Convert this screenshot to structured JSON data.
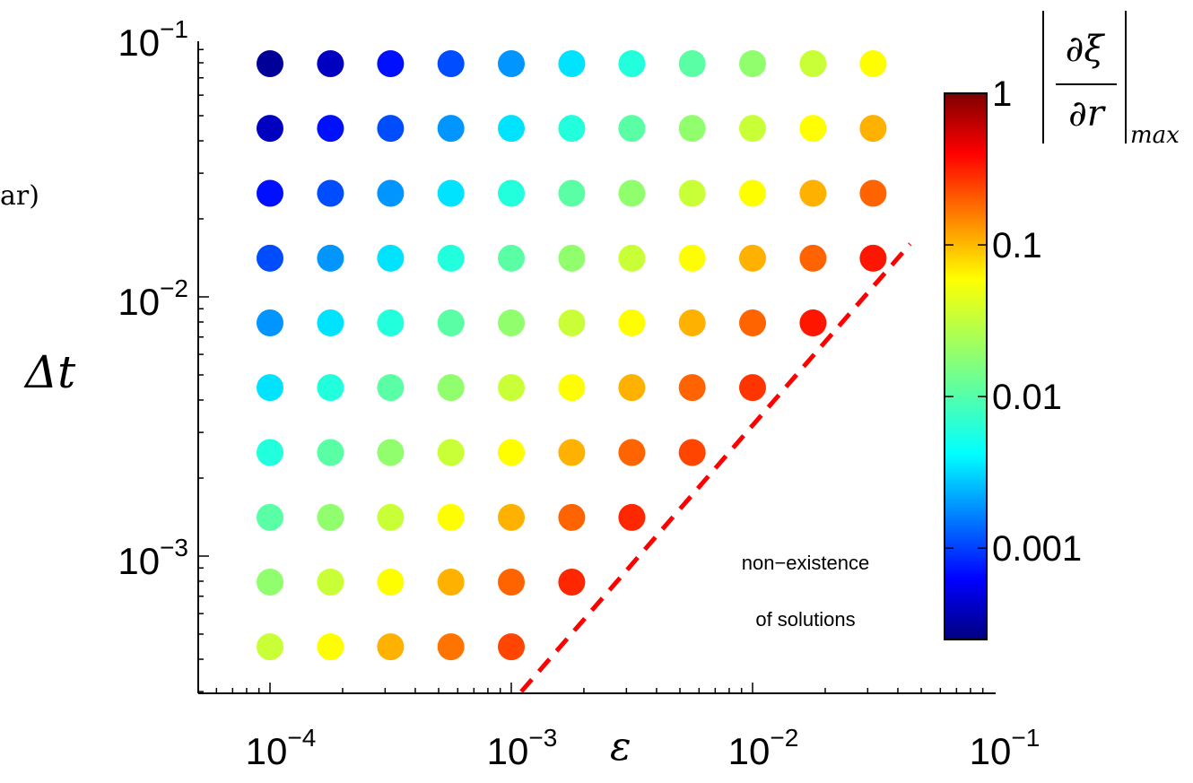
{
  "chart_data": {
    "type": "scatter",
    "title": "",
    "xlabel": "ε",
    "ylabel": "Δt",
    "x_scale": "log",
    "y_scale": "log",
    "xlim": [
      5e-05,
      0.1
    ],
    "ylim": [
      0.0003,
      0.1
    ],
    "x_ticks": [
      {
        "value": 0.0001,
        "base": "10",
        "exp": "−4"
      },
      {
        "value": 0.001,
        "base": "10",
        "exp": "−3"
      },
      {
        "value": 0.01,
        "base": "10",
        "exp": "−2"
      },
      {
        "value": 0.1,
        "base": "10",
        "exp": "−1"
      }
    ],
    "y_ticks": [
      {
        "value": 0.001,
        "base": "10",
        "exp": "−3"
      },
      {
        "value": 0.01,
        "base": "10",
        "exp": "−2"
      },
      {
        "value": 0.1,
        "base": "10",
        "exp": "−1"
      }
    ],
    "grid": false,
    "epsilon_values": [
      0.0001,
      0.000178,
      0.000316,
      0.000562,
      0.001,
      0.00178,
      0.00316,
      0.00562,
      0.01,
      0.0178,
      0.0316
    ],
    "dt_values": [
      0.0794,
      0.0447,
      0.0251,
      0.0141,
      0.00794,
      0.00447,
      0.00251,
      0.00141,
      0.000794,
      0.000447
    ],
    "max_derivative": [
      [
        0.0003,
        0.0004,
        0.0007,
        0.0011,
        0.0019,
        0.0034,
        0.006,
        0.0107,
        0.019,
        0.034,
        0.06
      ],
      [
        0.0004,
        0.0007,
        0.0011,
        0.0019,
        0.0034,
        0.006,
        0.0107,
        0.019,
        0.034,
        0.06,
        0.107
      ],
      [
        0.0007,
        0.0011,
        0.0019,
        0.0034,
        0.006,
        0.0107,
        0.019,
        0.034,
        0.06,
        0.107,
        0.19
      ],
      [
        0.0011,
        0.0019,
        0.0034,
        0.006,
        0.0107,
        0.019,
        0.034,
        0.06,
        0.107,
        0.19,
        0.34
      ],
      [
        0.0019,
        0.0034,
        0.006,
        0.0107,
        0.019,
        0.034,
        0.06,
        0.107,
        0.19,
        0.34,
        null
      ],
      [
        0.0034,
        0.006,
        0.0107,
        0.019,
        0.034,
        0.06,
        0.107,
        0.19,
        0.27,
        null,
        null
      ],
      [
        0.006,
        0.0107,
        0.019,
        0.034,
        0.06,
        0.107,
        0.19,
        0.24,
        null,
        null,
        null
      ],
      [
        0.0107,
        0.019,
        0.034,
        0.06,
        0.107,
        0.19,
        0.3,
        null,
        null,
        null,
        null
      ],
      [
        0.019,
        0.034,
        0.06,
        0.107,
        0.19,
        0.3,
        null,
        null,
        null,
        null,
        null
      ],
      [
        0.034,
        0.06,
        0.107,
        0.17,
        0.24,
        null,
        null,
        null,
        null,
        null,
        null
      ]
    ],
    "boundary_line": {
      "style": "dashed",
      "color": "#ff0000",
      "points": [
        [
          0.0011,
          0.0003
        ],
        [
          0.045,
          0.016
        ]
      ]
    },
    "annotation": [
      "non−existence",
      "of solutions"
    ],
    "colorbar": {
      "scale": "log",
      "range": [
        0.00025,
        1
      ],
      "colormap": "jet",
      "ticks": [
        {
          "value": 1,
          "label": "1"
        },
        {
          "value": 0.1,
          "label": "0.1"
        },
        {
          "value": 0.01,
          "label": "0.01"
        },
        {
          "value": 0.001,
          "label": "0.001"
        }
      ],
      "label_numerator": "∂ξ",
      "label_denominator": "∂r",
      "label_subscript": "max"
    },
    "left_margin_fragment": "ar)"
  }
}
